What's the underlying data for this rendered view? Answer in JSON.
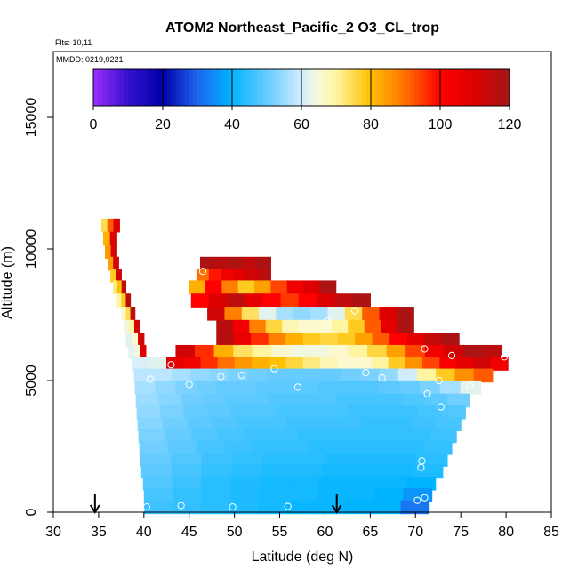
{
  "chart_data": {
    "type": "heatmap",
    "title": "ATOM2 Northeast_Pacific_2 O3_CL_trop",
    "flights_text": "Flts: 10,11",
    "mmdd_text": "MMDD: 0219,0221",
    "xlabel": "Latitude (deg N)",
    "ylabel": "Altitude (m)",
    "xlim": [
      30,
      85
    ],
    "ylim": [
      0,
      17500
    ],
    "x_ticks": [
      "30",
      "35",
      "40",
      "45",
      "50",
      "55",
      "60",
      "65",
      "70",
      "75",
      "80",
      "85"
    ],
    "y_ticks": [
      "0",
      "5000",
      "10000",
      "15000"
    ],
    "colorbar": {
      "range": [
        0,
        120
      ],
      "ticks": [
        "0",
        "20",
        "40",
        "60",
        "80",
        "100",
        "120"
      ],
      "stops": [
        {
          "v": 0,
          "c": "#9b30ff"
        },
        {
          "v": 10,
          "c": "#3311cc"
        },
        {
          "v": 20,
          "c": "#0000aa"
        },
        {
          "v": 30,
          "c": "#1e66ee"
        },
        {
          "v": 40,
          "c": "#00b4ff"
        },
        {
          "v": 50,
          "c": "#66ccff"
        },
        {
          "v": 60,
          "c": "#d2ecff"
        },
        {
          "v": 65,
          "c": "#fafad8"
        },
        {
          "v": 70,
          "c": "#fff5a0"
        },
        {
          "v": 80,
          "c": "#ffc000"
        },
        {
          "v": 90,
          "c": "#ff7000"
        },
        {
          "v": 100,
          "c": "#ff0000"
        },
        {
          "v": 110,
          "c": "#dd0000"
        },
        {
          "v": 120,
          "c": "#a01818"
        }
      ]
    },
    "flight_track_markers": [
      {
        "lat": 40.3,
        "alt": 200
      },
      {
        "lat": 44.1,
        "alt": 250
      },
      {
        "lat": 49.8,
        "alt": 200
      },
      {
        "lat": 55.9,
        "alt": 220
      },
      {
        "lat": 70.2,
        "alt": 450
      },
      {
        "lat": 71.0,
        "alt": 550
      },
      {
        "lat": 70.6,
        "alt": 1700
      },
      {
        "lat": 70.7,
        "alt": 1950
      },
      {
        "lat": 72.8,
        "alt": 4000
      },
      {
        "lat": 71.3,
        "alt": 4500
      },
      {
        "lat": 72.6,
        "alt": 5000
      },
      {
        "lat": 76.0,
        "alt": 4800
      },
      {
        "lat": 64.5,
        "alt": 5300
      },
      {
        "lat": 66.3,
        "alt": 5100
      },
      {
        "lat": 57.0,
        "alt": 4750
      },
      {
        "lat": 54.4,
        "alt": 5450
      },
      {
        "lat": 50.8,
        "alt": 5200
      },
      {
        "lat": 48.5,
        "alt": 5150
      },
      {
        "lat": 45.0,
        "alt": 4850
      },
      {
        "lat": 40.7,
        "alt": 5050
      },
      {
        "lat": 43.0,
        "alt": 5600
      },
      {
        "lat": 71.0,
        "alt": 6200
      },
      {
        "lat": 74.0,
        "alt": 5950
      },
      {
        "lat": 79.8,
        "alt": 5900
      },
      {
        "lat": 60.2,
        "alt": 7250
      },
      {
        "lat": 63.3,
        "alt": 7650
      },
      {
        "lat": 46.5,
        "alt": 9150
      }
    ],
    "arrows_lat": [
      34.6,
      61.3
    ],
    "curtain_rows": [
      {
        "alt": 10900,
        "x0": 35.3,
        "x1": 37.3,
        "values": [
          75,
          92,
          110
        ]
      },
      {
        "alt": 10400,
        "x0": 35.5,
        "x1": 37.0,
        "values": [
          82,
          110
        ]
      },
      {
        "alt": 9900,
        "x0": 35.7,
        "x1": 37.0,
        "values": [
          85,
          112
        ]
      },
      {
        "alt": 9450,
        "x0": 36.0,
        "x1": 37.2,
        "values": [
          84,
          112
        ]
      },
      {
        "alt": 9450,
        "x0": 46.2,
        "x1": 54.0,
        "values": [
          118,
          116,
          118,
          115,
          118
        ]
      },
      {
        "alt": 9000,
        "x0": 36.3,
        "x1": 37.5,
        "values": [
          78,
          112
        ]
      },
      {
        "alt": 9000,
        "x0": 45.8,
        "x1": 54.0,
        "values": [
          90,
          98,
          104,
          108,
          112,
          116
        ]
      },
      {
        "alt": 8550,
        "x0": 36.6,
        "x1": 38.0,
        "values": [
          72,
          80,
          115
        ]
      },
      {
        "alt": 8550,
        "x0": 45.0,
        "x1": 61.2,
        "values": [
          82,
          100,
          88,
          78,
          84,
          94,
          104,
          110,
          118
        ]
      },
      {
        "alt": 8050,
        "x0": 37.0,
        "x1": 38.5,
        "values": [
          70,
          78,
          116
        ]
      },
      {
        "alt": 8050,
        "x0": 45.2,
        "x1": 65.0,
        "values": [
          100,
          110,
          115,
          108,
          100,
          95,
          100,
          110,
          115,
          118
        ]
      },
      {
        "alt": 7550,
        "x0": 37.5,
        "x1": 39.0,
        "values": [
          66,
          75,
          115
        ]
      },
      {
        "alt": 7550,
        "x0": 47.0,
        "x1": 69.8,
        "values": [
          112,
          88,
          74,
          62,
          56,
          54,
          56,
          62,
          75,
          92,
          110,
          118
        ]
      },
      {
        "alt": 7050,
        "x0": 37.8,
        "x1": 39.5,
        "values": [
          64,
          70,
          112
        ]
      },
      {
        "alt": 7050,
        "x0": 48.0,
        "x1": 69.8,
        "values": [
          116,
          104,
          88,
          76,
          68,
          66,
          66,
          70,
          78,
          92,
          108,
          118
        ]
      },
      {
        "alt": 6550,
        "x0": 38.0,
        "x1": 40.0,
        "values": [
          62,
          66,
          112
        ]
      },
      {
        "alt": 6550,
        "x0": 48.0,
        "x1": 74.8,
        "values": [
          116,
          106,
          96,
          88,
          82,
          78,
          76,
          78,
          84,
          92,
          100,
          108,
          114,
          118
        ]
      },
      {
        "alt": 6100,
        "x0": 38.3,
        "x1": 40.2,
        "values": [
          62,
          64,
          110
        ]
      },
      {
        "alt": 6100,
        "x0": 43.5,
        "x1": 79.5,
        "values": [
          112,
          96,
          82,
          74,
          70,
          66,
          64,
          64,
          66,
          70,
          76,
          84,
          94,
          104,
          112,
          118,
          116
        ]
      },
      {
        "alt": 5650,
        "x0": 38.7,
        "x1": 80.2,
        "values": [
          61,
          62,
          108,
          104,
          96,
          90,
          85,
          82,
          80,
          76,
          72,
          68,
          66,
          66,
          70,
          78,
          86,
          94,
          102,
          108,
          112,
          104
        ]
      },
      {
        "alt": 5200,
        "x0": 38.9,
        "x1": 78.5,
        "values": [
          58,
          58,
          56,
          54,
          53,
          52,
          51,
          50,
          50,
          50,
          50,
          51,
          52,
          54,
          60,
          70,
          78,
          86,
          92
        ]
      },
      {
        "alt": 4750,
        "x0": 39.0,
        "x1": 77.2,
        "values": [
          56,
          54,
          52,
          51,
          50,
          50,
          49,
          49,
          49,
          48,
          48,
          48,
          49,
          50,
          52,
          56,
          62
        ]
      },
      {
        "alt": 4250,
        "x0": 39.1,
        "x1": 76.0,
        "values": [
          55,
          53,
          51,
          50,
          49,
          49,
          48,
          48,
          48,
          47,
          47,
          47,
          48,
          49,
          51
        ]
      },
      {
        "alt": 3800,
        "x0": 39.2,
        "x1": 75.5,
        "values": [
          54,
          52,
          50,
          49,
          48,
          48,
          47,
          47,
          47,
          46,
          46,
          46,
          47,
          48
        ]
      },
      {
        "alt": 3350,
        "x0": 39.3,
        "x1": 75.0,
        "values": [
          53,
          51,
          49,
          48,
          47,
          47,
          46,
          46,
          46,
          45,
          45,
          46,
          47
        ]
      },
      {
        "alt": 2900,
        "x0": 39.4,
        "x1": 74.5,
        "values": [
          52,
          50,
          48,
          47,
          46,
          46,
          45,
          45,
          45,
          45,
          45,
          46
        ]
      },
      {
        "alt": 2450,
        "x0": 39.5,
        "x1": 74.0,
        "values": [
          51,
          49,
          47,
          46,
          45,
          45,
          44,
          44,
          44,
          44,
          45
        ]
      },
      {
        "alt": 2000,
        "x0": 39.6,
        "x1": 73.5,
        "values": [
          50,
          48,
          46,
          45,
          44,
          44,
          43,
          43,
          43,
          44
        ]
      },
      {
        "alt": 1550,
        "x0": 39.7,
        "x1": 73.0,
        "values": [
          49,
          47,
          45,
          44,
          43,
          43,
          42,
          42,
          42,
          43
        ]
      },
      {
        "alt": 1100,
        "x0": 39.9,
        "x1": 72.2,
        "values": [
          48,
          46,
          44,
          43,
          42,
          42,
          41,
          41,
          41,
          40
        ]
      },
      {
        "alt": 650,
        "x0": 40.0,
        "x1": 71.8,
        "values": [
          47,
          45,
          44,
          43,
          42,
          42,
          41,
          41,
          40,
          36
        ]
      },
      {
        "alt": 200,
        "x0": 40.0,
        "x1": 71.5,
        "values": [
          46,
          45,
          44,
          43,
          42,
          41,
          41,
          40,
          40,
          32
        ]
      }
    ]
  }
}
